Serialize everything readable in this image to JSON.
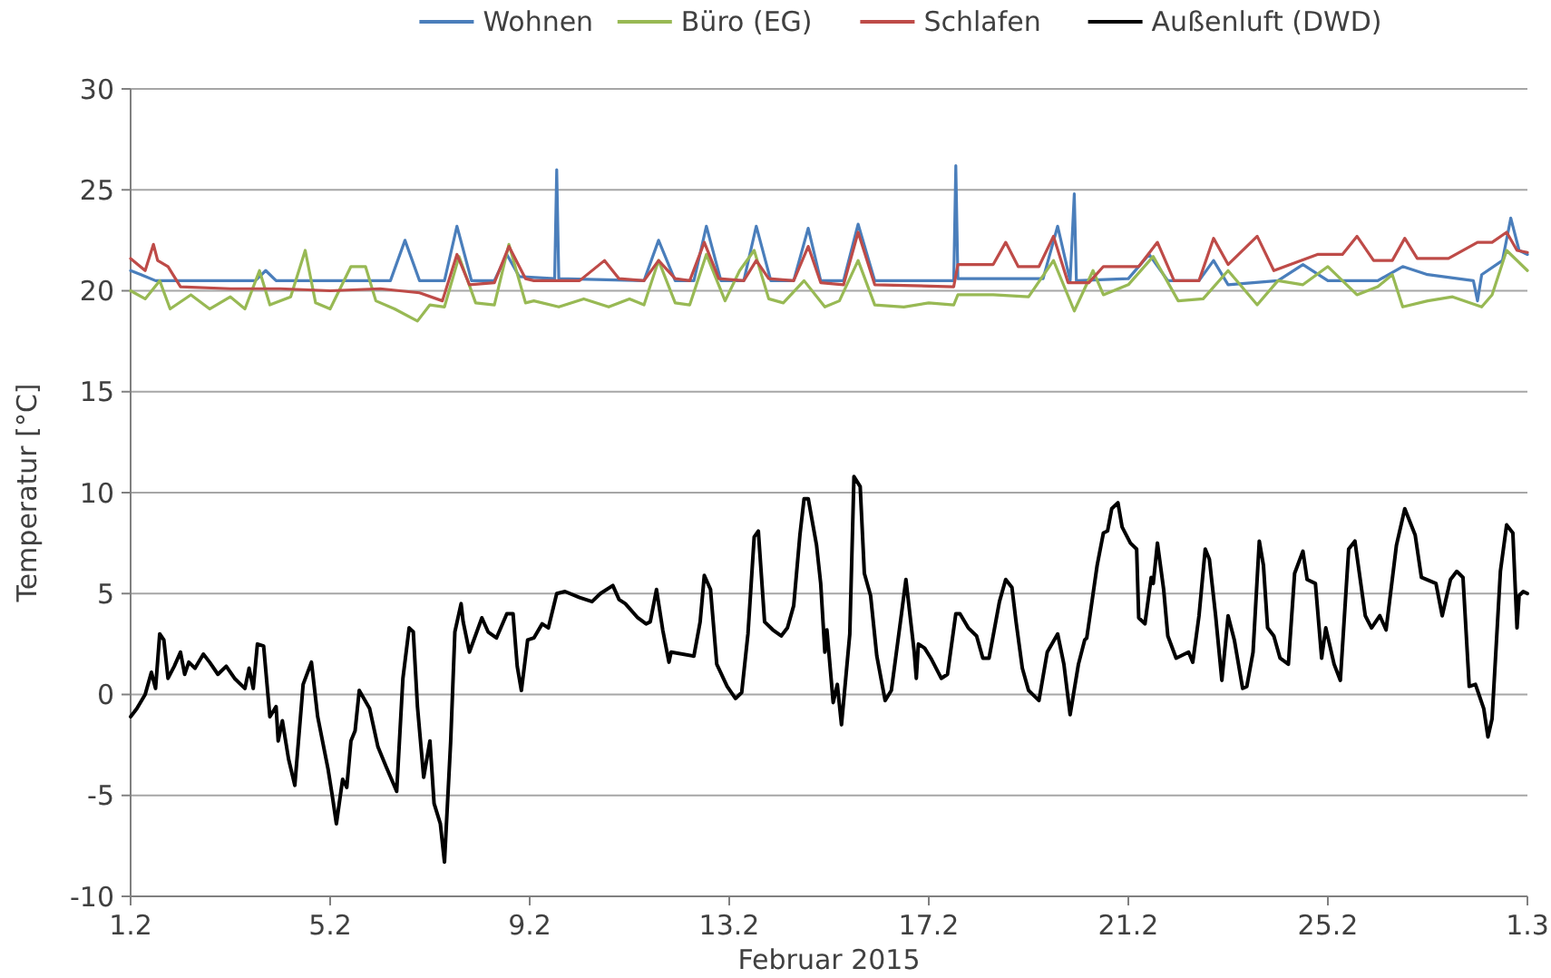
{
  "chart_data": {
    "type": "line",
    "xlabel": "Februar 2015",
    "ylabel": "Temperatur [°C]",
    "xlim": [
      "2015-02-01",
      "2015-03-01"
    ],
    "ylim": [
      -10,
      30
    ],
    "xticks": [
      {
        "value": "2015-02-01",
        "label": "1.2"
      },
      {
        "value": "2015-02-05",
        "label": "5.2"
      },
      {
        "value": "2015-02-09",
        "label": "9.2"
      },
      {
        "value": "2015-02-13",
        "label": "13.2"
      },
      {
        "value": "2015-02-17",
        "label": "17.2"
      },
      {
        "value": "2015-02-21",
        "label": "21.2"
      },
      {
        "value": "2015-02-25",
        "label": "25.2"
      },
      {
        "value": "2015-03-01",
        "label": "1.3"
      }
    ],
    "yticks": [
      -10,
      -5,
      0,
      5,
      10,
      15,
      20,
      25,
      30
    ],
    "grid": "y",
    "legend": "top",
    "marker": "none",
    "line_style": "solid",
    "series": [
      {
        "name": "Wohnen",
        "color": "#4a7ebb",
        "x": [
          "2015-02-01T00:00",
          "2015-02-01T05:00",
          "2015-02-01T12:00",
          "2015-02-03T12:00",
          "2015-02-03T17:00",
          "2015-02-03T22:00",
          "2015-02-06T05:00",
          "2015-02-06T12:00",
          "2015-02-06T19:00",
          "2015-02-07T07:00",
          "2015-02-07T13:00",
          "2015-02-07T20:00",
          "2015-02-08T07:00",
          "2015-02-08T13:00",
          "2015-02-08T19:00",
          "2015-02-09T12:00",
          "2015-02-09T13:00",
          "2015-02-09T14:00",
          "2015-02-11T07:00",
          "2015-02-11T14:00",
          "2015-02-11T22:00",
          "2015-02-12T07:00",
          "2015-02-12T13:00",
          "2015-02-12T20:00",
          "2015-02-13T07:00",
          "2015-02-13T13:00",
          "2015-02-13T20:00",
          "2015-02-14T07:00",
          "2015-02-14T14:00",
          "2015-02-14T20:00",
          "2015-02-15T07:00",
          "2015-02-15T14:00",
          "2015-02-15T22:00",
          "2015-02-17T12:00",
          "2015-02-17T13:00",
          "2015-02-17T14:00",
          "2015-02-19T07:00",
          "2015-02-19T14:00",
          "2015-02-19T20:00",
          "2015-02-19T22:00",
          "2015-02-19T23:00",
          "2015-02-21T00:00",
          "2015-02-21T10:00",
          "2015-02-21T19:00",
          "2015-02-22T10:00",
          "2015-02-22T17:00",
          "2015-02-23T00:00",
          "2015-02-24T00:00",
          "2015-02-24T12:00",
          "2015-02-25T00:00",
          "2015-02-26T00:00",
          "2015-02-26T12:00",
          "2015-02-27T00:00",
          "2015-02-27T22:00",
          "2015-02-28T00:00",
          "2015-02-28T02:00",
          "2015-02-28T12:00",
          "2015-02-28T16:00",
          "2015-02-28T20:00",
          "2015-03-01T00:00"
        ],
        "values": [
          21.0,
          20.8,
          20.5,
          20.5,
          21.0,
          20.5,
          20.5,
          22.5,
          20.5,
          20.5,
          23.2,
          20.5,
          20.5,
          21.8,
          20.7,
          20.6,
          26.0,
          20.6,
          20.5,
          22.5,
          20.5,
          20.5,
          23.2,
          20.5,
          20.5,
          23.2,
          20.5,
          20.5,
          23.1,
          20.5,
          20.5,
          23.3,
          20.5,
          20.5,
          26.2,
          20.6,
          20.6,
          23.2,
          20.5,
          24.8,
          20.5,
          20.6,
          21.8,
          20.5,
          20.5,
          21.5,
          20.3,
          20.5,
          21.3,
          20.5,
          20.5,
          21.2,
          20.8,
          20.5,
          19.5,
          20.8,
          21.5,
          23.6,
          22.0,
          21.8
        ]
      },
      {
        "name": "Büro (EG)",
        "color": "#98b954",
        "x": [
          "2015-02-01T00:00",
          "2015-02-01T07:00",
          "2015-02-01T14:00",
          "2015-02-01T19:00",
          "2015-02-02T05:00",
          "2015-02-02T14:00",
          "2015-02-03T00:00",
          "2015-02-03T07:00",
          "2015-02-03T14:00",
          "2015-02-03T19:00",
          "2015-02-04T05:00",
          "2015-02-04T12:00",
          "2015-02-04T17:00",
          "2015-02-05T00:00",
          "2015-02-05T10:00",
          "2015-02-05T17:00",
          "2015-02-05T22:00",
          "2015-02-06T07:00",
          "2015-02-06T18:00",
          "2015-02-07T00:00",
          "2015-02-07T07:00",
          "2015-02-07T14:00",
          "2015-02-07T22:00",
          "2015-02-08T07:00",
          "2015-02-08T14:00",
          "2015-02-08T22:00",
          "2015-02-09T02:00",
          "2015-02-09T14:00",
          "2015-02-10T02:00",
          "2015-02-10T14:00",
          "2015-02-11T00:00",
          "2015-02-11T07:00",
          "2015-02-11T14:00",
          "2015-02-11T22:00",
          "2015-02-12T05:00",
          "2015-02-12T13:00",
          "2015-02-12T22:00",
          "2015-02-13T05:00",
          "2015-02-13T12:00",
          "2015-02-13T19:00",
          "2015-02-14T02:00",
          "2015-02-14T12:00",
          "2015-02-14T22:00",
          "2015-02-15T05:00",
          "2015-02-15T14:00",
          "2015-02-15T22:00",
          "2015-02-16T12:00",
          "2015-02-17T00:00",
          "2015-02-17T12:00",
          "2015-02-17T14:00",
          "2015-02-18T07:00",
          "2015-02-19T00:00",
          "2015-02-19T12:00",
          "2015-02-19T22:00",
          "2015-02-20T07:00",
          "2015-02-20T12:00",
          "2015-02-21T00:00",
          "2015-02-21T12:00",
          "2015-02-22T00:00",
          "2015-02-22T12:00",
          "2015-02-23T00:00",
          "2015-02-23T14:00",
          "2015-02-24T00:00",
          "2015-02-24T12:00",
          "2015-02-25T00:00",
          "2015-02-25T14:00",
          "2015-02-26T00:00",
          "2015-02-26T07:00",
          "2015-02-26T12:00",
          "2015-02-27T00:00",
          "2015-02-27T12:00",
          "2015-02-28T02:00",
          "2015-02-28T07:00",
          "2015-02-28T14:00",
          "2015-03-01T00:00"
        ],
        "values": [
          20.0,
          19.6,
          20.5,
          19.1,
          19.8,
          19.1,
          19.7,
          19.1,
          21.0,
          19.3,
          19.7,
          22.0,
          19.4,
          19.1,
          21.2,
          21.2,
          19.5,
          19.1,
          18.5,
          19.3,
          19.2,
          21.7,
          19.4,
          19.3,
          22.3,
          19.4,
          19.5,
          19.2,
          19.6,
          19.2,
          19.6,
          19.3,
          21.5,
          19.4,
          19.3,
          21.8,
          19.5,
          21.0,
          22.0,
          19.6,
          19.4,
          20.5,
          19.2,
          19.5,
          21.5,
          19.3,
          19.2,
          19.4,
          19.3,
          19.8,
          19.8,
          19.7,
          21.5,
          19.0,
          21.0,
          19.8,
          20.3,
          21.7,
          19.5,
          19.6,
          21.0,
          19.3,
          20.5,
          20.3,
          21.2,
          19.8,
          20.2,
          20.8,
          19.2,
          19.5,
          19.7,
          19.2,
          19.8,
          22.0,
          21.0
        ]
      },
      {
        "name": "Schlafen",
        "color": "#be4b48",
        "x": [
          "2015-02-01T00:00",
          "2015-02-01T07:00",
          "2015-02-01T11:00",
          "2015-02-01T13:00",
          "2015-02-01T18:00",
          "2015-02-02T00:00",
          "2015-02-03T00:00",
          "2015-02-04T00:00",
          "2015-02-05T00:00",
          "2015-02-06T00:00",
          "2015-02-06T19:00",
          "2015-02-07T06:00",
          "2015-02-07T13:00",
          "2015-02-07T19:00",
          "2015-02-08T07:00",
          "2015-02-08T14:00",
          "2015-02-08T22:00",
          "2015-02-09T02:00",
          "2015-02-10T00:00",
          "2015-02-10T12:00",
          "2015-02-10T19:00",
          "2015-02-11T07:00",
          "2015-02-11T14:00",
          "2015-02-11T22:00",
          "2015-02-12T05:00",
          "2015-02-12T12:00",
          "2015-02-12T19:00",
          "2015-02-13T07:00",
          "2015-02-13T13:00",
          "2015-02-13T19:00",
          "2015-02-14T07:00",
          "2015-02-14T14:00",
          "2015-02-14T20:00",
          "2015-02-15T07:00",
          "2015-02-15T14:00",
          "2015-02-15T22:00",
          "2015-02-17T12:00",
          "2015-02-17T14:00",
          "2015-02-18T07:00",
          "2015-02-18T13:00",
          "2015-02-18T19:00",
          "2015-02-19T05:00",
          "2015-02-19T12:00",
          "2015-02-19T19:00",
          "2015-02-20T05:00",
          "2015-02-20T12:00",
          "2015-02-21T05:00",
          "2015-02-21T14:00",
          "2015-02-21T22:00",
          "2015-02-22T10:00",
          "2015-02-22T17:00",
          "2015-02-23T00:00",
          "2015-02-23T14:00",
          "2015-02-23T22:00",
          "2015-02-24T19:00",
          "2015-02-25T07:00",
          "2015-02-25T14:00",
          "2015-02-25T22:00",
          "2015-02-26T07:00",
          "2015-02-26T13:00",
          "2015-02-26T19:00",
          "2015-02-27T10:00",
          "2015-02-28T00:00",
          "2015-02-28T07:00",
          "2015-02-28T14:00",
          "2015-02-28T19:00",
          "2015-03-01T00:00"
        ],
        "values": [
          21.6,
          21.0,
          22.3,
          21.5,
          21.2,
          20.2,
          20.1,
          20.1,
          20.0,
          20.1,
          19.9,
          19.5,
          21.8,
          20.3,
          20.4,
          22.2,
          20.6,
          20.5,
          20.5,
          21.5,
          20.6,
          20.5,
          21.5,
          20.6,
          20.5,
          22.4,
          20.6,
          20.5,
          21.5,
          20.6,
          20.5,
          22.2,
          20.4,
          20.3,
          22.9,
          20.3,
          20.2,
          21.3,
          21.3,
          22.4,
          21.2,
          21.2,
          22.7,
          20.4,
          20.4,
          21.2,
          21.2,
          22.4,
          20.5,
          20.5,
          22.6,
          21.3,
          22.7,
          21.0,
          21.8,
          21.8,
          22.7,
          21.5,
          21.5,
          22.6,
          21.6,
          21.6,
          22.4,
          22.4,
          22.9,
          22.0,
          21.9
        ]
      },
      {
        "name": "Außenluft (DWD)",
        "color": "#000000",
        "x": [
          "2015-02-01T00:00",
          "2015-02-01T03:00",
          "2015-02-01T07:00",
          "2015-02-01T10:00",
          "2015-02-01T12:00",
          "2015-02-01T14:00",
          "2015-02-01T16:00",
          "2015-02-01T18:00",
          "2015-02-01T21:00",
          "2015-02-02T00:00",
          "2015-02-02T02:00",
          "2015-02-02T04:00",
          "2015-02-02T07:00",
          "2015-02-02T11:00",
          "2015-02-02T14:00",
          "2015-02-02T18:00",
          "2015-02-02T22:00",
          "2015-02-03T02:00",
          "2015-02-03T07:00",
          "2015-02-03T09:00",
          "2015-02-03T11:00",
          "2015-02-03T13:00",
          "2015-02-03T16:00",
          "2015-02-03T19:00",
          "2015-02-03T22:00",
          "2015-02-03T23:00",
          "2015-02-04T01:00",
          "2015-02-04T04:00",
          "2015-02-04T07:00",
          "2015-02-04T11:00",
          "2015-02-04T15:00",
          "2015-02-04T18:00",
          "2015-02-04T23:00",
          "2015-02-05T01:00",
          "2015-02-05T03:00",
          "2015-02-05T06:00",
          "2015-02-05T08:00",
          "2015-02-05T10:00",
          "2015-02-05T12:00",
          "2015-02-05T14:00",
          "2015-02-05T19:00",
          "2015-02-05T23:00",
          "2015-02-06T03:00",
          "2015-02-06T08:00",
          "2015-02-06T11:00",
          "2015-02-06T14:00",
          "2015-02-06T16:00",
          "2015-02-06T18:00",
          "2015-02-06T21:00",
          "2015-02-07T00:00",
          "2015-02-07T02:00",
          "2015-02-07T05:00",
          "2015-02-07T07:00",
          "2015-02-07T10:00",
          "2015-02-07T12:00",
          "2015-02-07T15:00",
          "2015-02-07T16:00",
          "2015-02-07T19:00",
          "2015-02-08T01:00",
          "2015-02-08T04:00",
          "2015-02-08T08:00",
          "2015-02-08T13:00",
          "2015-02-08T16:00",
          "2015-02-08T18:00",
          "2015-02-08T20:00",
          "2015-02-08T23:00",
          "2015-02-09T02:00",
          "2015-02-09T06:00",
          "2015-02-09T09:00",
          "2015-02-09T13:00",
          "2015-02-09T17:00",
          "2015-02-10T00:00",
          "2015-02-10T06:00",
          "2015-02-10T10:00",
          "2015-02-10T16:00",
          "2015-02-10T19:00",
          "2015-02-10T22:00",
          "2015-02-11T04:00",
          "2015-02-11T08:00",
          "2015-02-11T10:00",
          "2015-02-11T13:00",
          "2015-02-11T16:00",
          "2015-02-11T19:00",
          "2015-02-11T20:00",
          "2015-02-12T07:00",
          "2015-02-12T10:00",
          "2015-02-12T12:00",
          "2015-02-12T15:00",
          "2015-02-12T18:00",
          "2015-02-12T23:00",
          "2015-02-13T03:00",
          "2015-02-13T06:00",
          "2015-02-13T09:00",
          "2015-02-13T12:00",
          "2015-02-13T14:00",
          "2015-02-13T17:00",
          "2015-02-13T21:00",
          "2015-02-14T01:00",
          "2015-02-14T04:00",
          "2015-02-14T07:00",
          "2015-02-14T10:00",
          "2015-02-14T12:00",
          "2015-02-14T14:00",
          "2015-02-14T18:00",
          "2015-02-14T20:00",
          "2015-02-14T22:00",
          "2015-02-14T23:00",
          "2015-02-15T02:00",
          "2015-02-15T04:00",
          "2015-02-15T06:00",
          "2015-02-15T10:00",
          "2015-02-15T12:00",
          "2015-02-15T15:00",
          "2015-02-15T17:00",
          "2015-02-15T20:00",
          "2015-02-15T23:00",
          "2015-02-16T03:00",
          "2015-02-16T06:00",
          "2015-02-16T11:00",
          "2015-02-16T13:00",
          "2015-02-16T17:00",
          "2015-02-16T18:00",
          "2015-02-16T19:00",
          "2015-02-16T22:00",
          "2015-02-17T01:00",
          "2015-02-17T06:00",
          "2015-02-17T09:00",
          "2015-02-17T13:00",
          "2015-02-17T15:00",
          "2015-02-17T19:00",
          "2015-02-17T23:00",
          "2015-02-18T02:00",
          "2015-02-18T05:00",
          "2015-02-18T10:00",
          "2015-02-18T13:00",
          "2015-02-18T16:00",
          "2015-02-18T18:00",
          "2015-02-18T21:00",
          "2015-02-19T00:00",
          "2015-02-19T05:00",
          "2015-02-19T09:00",
          "2015-02-19T14:00",
          "2015-02-19T17:00",
          "2015-02-19T20:00",
          "2015-02-20T00:00",
          "2015-02-20T03:00",
          "2015-02-20T04:00",
          "2015-02-20T09:00",
          "2015-02-20T12:00",
          "2015-02-20T14:00",
          "2015-02-20T16:00",
          "2015-02-20T19:00",
          "2015-02-20T21:00",
          "2015-02-21T01:00",
          "2015-02-21T04:00",
          "2015-02-21T05:00",
          "2015-02-21T08:00",
          "2015-02-21T11:00",
          "2015-02-21T12:00",
          "2015-02-21T14:00",
          "2015-02-21T17:00",
          "2015-02-21T19:00",
          "2015-02-21T23:00",
          "2015-02-22T05:00",
          "2015-02-22T07:00",
          "2015-02-22T10:00",
          "2015-02-22T13:00",
          "2015-02-22T15:00",
          "2015-02-22T18:00",
          "2015-02-22T21:00",
          "2015-02-23T00:00",
          "2015-02-23T03:00",
          "2015-02-23T07:00",
          "2015-02-23T09:00",
          "2015-02-23T12:00",
          "2015-02-23T15:00",
          "2015-02-23T17:00",
          "2015-02-23T19:00",
          "2015-02-23T22:00",
          "2015-02-24T01:00",
          "2015-02-24T05:00",
          "2015-02-24T08:00",
          "2015-02-24T12:00",
          "2015-02-24T14:00",
          "2015-02-24T18:00",
          "2015-02-24T21:00",
          "2015-02-24T23:00",
          "2015-02-25T03:00",
          "2015-02-25T06:00",
          "2015-02-25T10:00",
          "2015-02-25T13:00",
          "2015-02-25T18:00",
          "2015-02-25T21:00",
          "2015-02-26T01:00",
          "2015-02-26T04:00",
          "2015-02-26T09:00",
          "2015-02-26T13:00",
          "2015-02-26T18:00",
          "2015-02-26T21:00",
          "2015-02-27T04:00",
          "2015-02-27T07:00",
          "2015-02-27T11:00",
          "2015-02-27T14:00",
          "2015-02-27T17:00",
          "2015-02-27T20:00",
          "2015-02-27T23:00",
          "2015-02-28T03:00",
          "2015-02-28T05:00",
          "2015-02-28T07:00",
          "2015-02-28T11:00",
          "2015-02-28T14:00",
          "2015-02-28T17:00",
          "2015-02-28T19:00",
          "2015-02-28T20:00",
          "2015-02-28T22:00",
          "2015-03-01T00:00"
        ],
        "values": [
          -1.1,
          -0.7,
          0,
          1.1,
          0.3,
          3.0,
          2.7,
          0.8,
          1.4,
          2.1,
          1.0,
          1.6,
          1.3,
          2.0,
          1.6,
          1.0,
          1.4,
          0.8,
          0.3,
          1.3,
          0.3,
          2.5,
          2.4,
          -1.1,
          -0.6,
          -2.3,
          -1.3,
          -3.2,
          -4.5,
          0.5,
          1.6,
          -1.1,
          -3.7,
          -5.0,
          -6.4,
          -4.2,
          -4.6,
          -2.3,
          -1.8,
          0.2,
          -0.7,
          -2.6,
          -3.6,
          -4.8,
          0.8,
          3.3,
          3.1,
          -0.6,
          -4.1,
          -2.3,
          -5.4,
          -6.4,
          -8.3,
          -2.3,
          3.1,
          4.5,
          3.6,
          2.1,
          3.8,
          3.1,
          2.8,
          4.0,
          4.0,
          1.4,
          0.2,
          2.7,
          2.8,
          3.5,
          3.3,
          5.0,
          5.1,
          4.8,
          4.6,
          5.0,
          5.4,
          4.7,
          4.5,
          3.8,
          3.5,
          3.6,
          5.2,
          3.2,
          1.6,
          2.1,
          1.9,
          3.6,
          5.9,
          5.2,
          1.5,
          0.4,
          -0.2,
          0.1,
          3.0,
          7.8,
          8.1,
          3.6,
          3.2,
          2.9,
          3.3,
          4.4,
          7.9,
          9.7,
          9.7,
          7.4,
          5.5,
          2.1,
          3.2,
          -0.4,
          0.5,
          -1.5,
          3.0,
          10.8,
          10.3,
          6.0,
          4.9,
          1.9,
          -0.3,
          0.2,
          4.1,
          5.7,
          2.1,
          0.8,
          2.5,
          2.3,
          1.8,
          0.8,
          1.0,
          4.0,
          4.0,
          3.3,
          2.9,
          1.8,
          1.8,
          4.6,
          5.7,
          5.3,
          3.6,
          1.3,
          0.2,
          -0.3,
          2.1,
          3.0,
          1.5,
          -1.0,
          1.5,
          2.7,
          2.8,
          6.4,
          8.0,
          8.1,
          9.2,
          9.5,
          8.3,
          7.5,
          7.2,
          3.8,
          3.5,
          5.8,
          5.5,
          7.5,
          5.2,
          2.9,
          1.8,
          2.1,
          1.6,
          3.9,
          7.2,
          6.7,
          3.9,
          0.7,
          3.9,
          2.7,
          0.3,
          0.4,
          2.1,
          7.6,
          6.4,
          3.3,
          2.9,
          1.8,
          1.5,
          6.0,
          7.1,
          5.7,
          5.5,
          1.8,
          3.3,
          1.5,
          0.7,
          7.2,
          7.6,
          3.9,
          3.3,
          3.9,
          3.2,
          7.4,
          9.2,
          7.9,
          5.8,
          5.5,
          3.9,
          5.7,
          6.1,
          5.8,
          0.4,
          0.5,
          -0.7,
          -2.1,
          -1.2,
          6.1,
          8.4,
          8.0,
          3.3,
          4.9,
          5.1,
          5.0
        ]
      }
    ]
  }
}
